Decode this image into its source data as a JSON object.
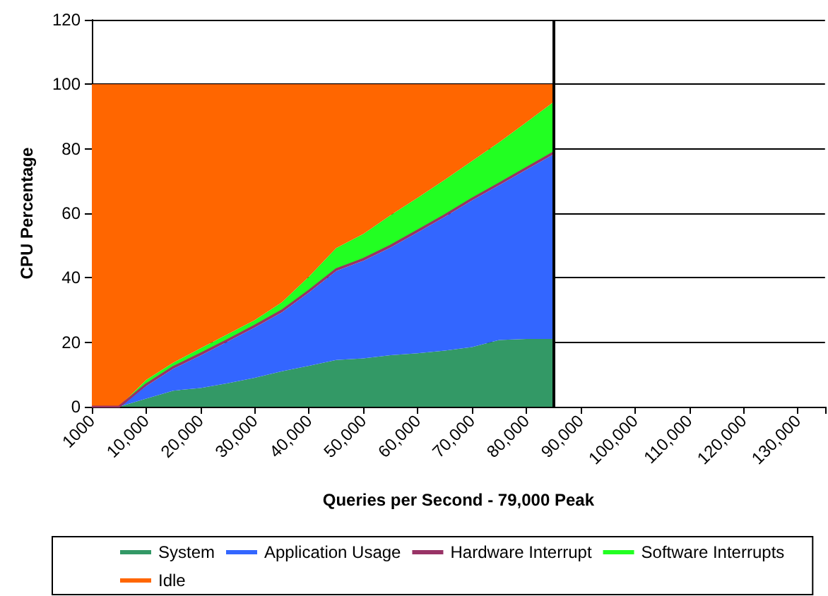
{
  "chart_data": {
    "type": "area",
    "stacked": true,
    "xlabel": "Queries per Second - 79,000 Peak",
    "ylabel": "CPU Percentage",
    "categories": [
      "1000",
      null,
      "10,000",
      null,
      "20,000",
      null,
      "30,000",
      null,
      "40,000",
      null,
      "50,000",
      null,
      "60,000",
      null,
      "70,000",
      null,
      "80,000",
      null,
      "90,000",
      null,
      "100,000",
      null,
      "110,000",
      null,
      "120,000",
      null,
      "130,000",
      null
    ],
    "series": [
      {
        "name": "System",
        "color": "#339966",
        "values": [
          0,
          0,
          2.5,
          5,
          5.8,
          7.3,
          9,
          11,
          12.7,
          14.5,
          15,
          16,
          16.6,
          17.4,
          18.5,
          20.7,
          21,
          21,
          null,
          null,
          null,
          null,
          null,
          null,
          null,
          null,
          null,
          null
        ]
      },
      {
        "name": "Application Usage",
        "color": "#3366ff",
        "values": [
          0,
          0,
          3.9,
          6.8,
          10.1,
          12.9,
          15.6,
          18.3,
          22.8,
          27.6,
          30.3,
          33.4,
          37.5,
          41.5,
          45.5,
          48,
          52.5,
          57.3,
          null,
          null,
          null,
          null,
          null,
          null,
          null,
          null,
          null,
          null
        ]
      },
      {
        "name": "Hardware Interrupt",
        "color": "#993366",
        "values": [
          0,
          0,
          0.5,
          0.5,
          0.5,
          0.5,
          0.5,
          0.5,
          0.5,
          0.5,
          0.5,
          0.5,
          0.5,
          0.5,
          0.5,
          0.5,
          0.5,
          0.5,
          null,
          null,
          null,
          null,
          null,
          null,
          null,
          null,
          null,
          null
        ]
      },
      {
        "name": "Software Interrupts",
        "color": "#22ff22",
        "values": [
          0,
          0,
          1.4,
          1.4,
          1.7,
          1.8,
          1.8,
          2.6,
          4.4,
          6.6,
          7.8,
          9.5,
          10.2,
          11,
          11.7,
          12.8,
          14.2,
          15.7,
          null,
          null,
          null,
          null,
          null,
          null,
          null,
          null,
          null,
          null
        ]
      },
      {
        "name": "Idle",
        "color": "#ff6600",
        "values": [
          100,
          100,
          91.7,
          86.3,
          81.9,
          77.5,
          73.1,
          67.6,
          59.6,
          50.8,
          46.4,
          40.6,
          35.2,
          29.6,
          23.8,
          18,
          11.8,
          5.5,
          null,
          null,
          null,
          null,
          null,
          null,
          null,
          null,
          null,
          null
        ]
      }
    ],
    "ylim": [
      0,
      120
    ],
    "yticks": [
      0,
      20,
      40,
      60,
      80,
      100,
      120
    ],
    "grid": "y",
    "legend": "bottom",
    "marker": "none"
  }
}
